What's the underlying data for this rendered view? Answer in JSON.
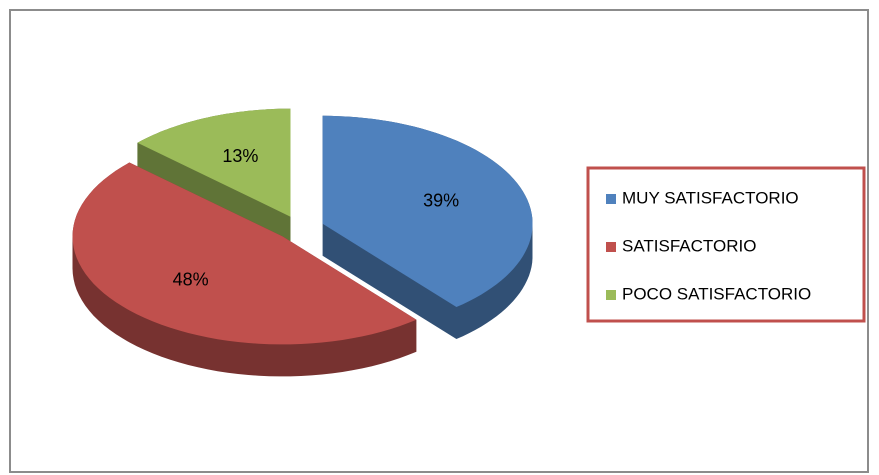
{
  "chart_data": {
    "type": "pie",
    "categories": [
      "MUY SATISFACTORIO",
      "SATISFACTORIO",
      "POCO SATISFACTORIO"
    ],
    "values": [
      39,
      48,
      13
    ],
    "value_labels": [
      "39%",
      "48%",
      "13%"
    ],
    "colors": [
      "#4f81bd",
      "#c0504d",
      "#9bbb59"
    ],
    "legend": "right"
  }
}
